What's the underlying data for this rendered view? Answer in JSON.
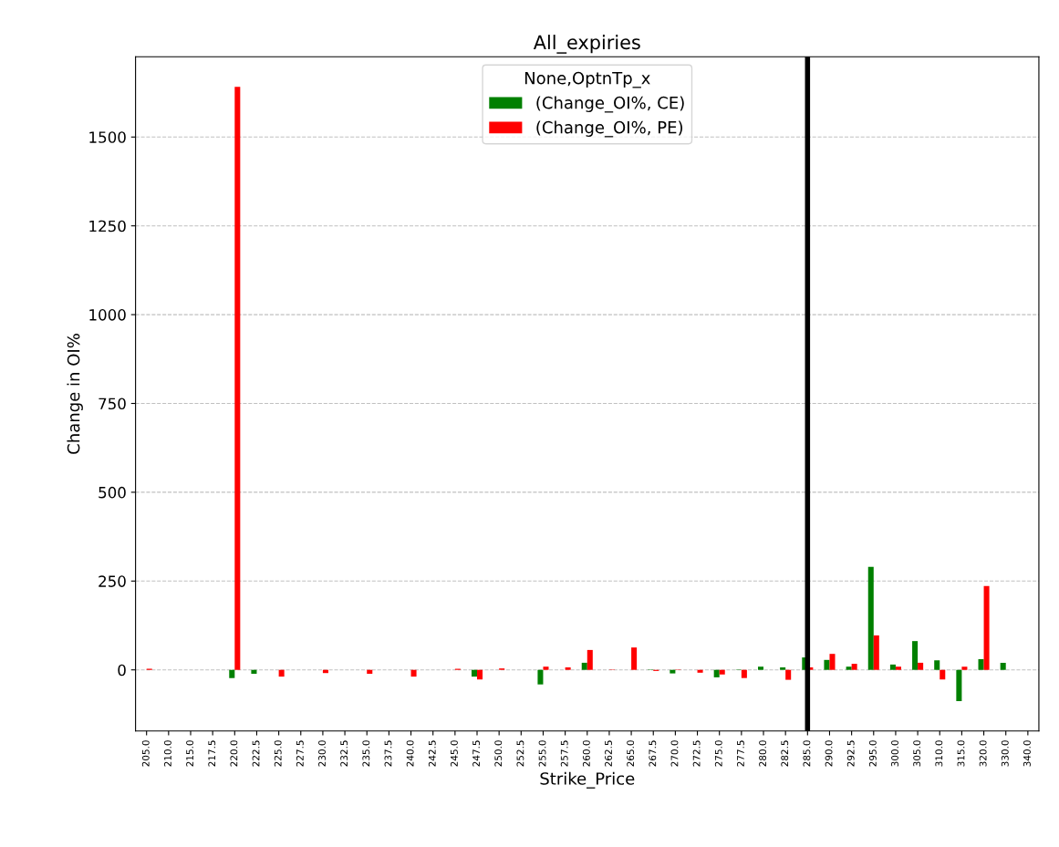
{
  "chart_data": {
    "type": "bar",
    "title": "All_expiries",
    "xlabel": "Strike_Price",
    "ylabel": "Change in OI%",
    "legend_title": "None,OptnTp_x",
    "categories": [
      "205.0",
      "210.0",
      "215.0",
      "217.5",
      "220.0",
      "222.5",
      "225.0",
      "227.5",
      "230.0",
      "232.5",
      "235.0",
      "237.5",
      "240.0",
      "242.5",
      "245.0",
      "247.5",
      "250.0",
      "252.5",
      "255.0",
      "257.5",
      "260.0",
      "262.5",
      "265.0",
      "267.5",
      "270.0",
      "272.5",
      "275.0",
      "277.5",
      "280.0",
      "282.5",
      "285.0",
      "290.0",
      "292.5",
      "295.0",
      "300.0",
      "305.0",
      "310.0",
      "315.0",
      "320.0",
      "330.0",
      "340.0"
    ],
    "series": [
      {
        "name": "(Change_OI%, CE)",
        "color": "#008000",
        "values": [
          0,
          0,
          0,
          0,
          -23,
          -11,
          0,
          0,
          0,
          0,
          0,
          0,
          0,
          0,
          null,
          -19,
          0,
          0,
          -41,
          0,
          20,
          0,
          0,
          1,
          -10,
          0,
          -21,
          1,
          9,
          7,
          35,
          28,
          9,
          290,
          15,
          81,
          27,
          -88,
          30,
          20,
          0
        ]
      },
      {
        "name": "(Change_OI%, PE)",
        "color": "#ff0000",
        "values": [
          3,
          0,
          0,
          0,
          1641,
          0,
          -19,
          0,
          -9,
          0,
          -11,
          0,
          -19,
          0,
          3,
          -27,
          4,
          0,
          9,
          7,
          56,
          1,
          63,
          -3,
          1,
          -8,
          -13,
          -23,
          0,
          -28,
          7,
          45,
          17,
          97,
          9,
          20,
          -27,
          9,
          236,
          0,
          0
        ]
      }
    ],
    "ylim": [
      -172,
      1726
    ],
    "yticks": [
      0,
      250,
      500,
      750,
      1000,
      1250,
      1500
    ],
    "grid": "y",
    "legend": "top",
    "ref_lines": [
      {
        "axis": "x",
        "value": "285.0",
        "color": "#000000"
      }
    ]
  }
}
